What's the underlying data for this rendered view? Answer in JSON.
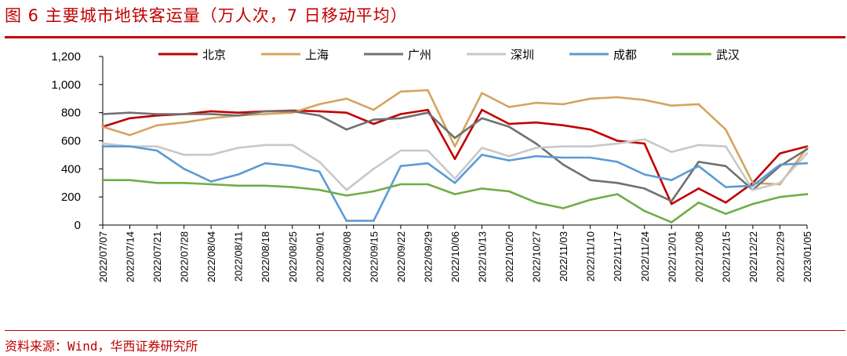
{
  "header": {
    "title": "图 6 主要城市地铁客运量（万人次，7 日移动平均）"
  },
  "footer": {
    "source": "资料来源：Wind，华西证券研究所"
  },
  "colors": {
    "brand": "#c00000",
    "axis": "#000000"
  },
  "chart_data": {
    "type": "line",
    "title": "图 6 主要城市地铁客运量（万人次，7 日移动平均）",
    "xlabel": "",
    "ylabel": "",
    "ylim": [
      0,
      1200
    ],
    "yticks": [
      0,
      200,
      400,
      600,
      800,
      1000,
      1200
    ],
    "ytick_labels": [
      "0",
      "200",
      "400",
      "600",
      "800",
      "1,000",
      "1,200"
    ],
    "grid": false,
    "legend_position": "top",
    "x": [
      "2022/07/07",
      "2022/07/14",
      "2022/07/21",
      "2022/07/28",
      "2022/08/04",
      "2022/08/11",
      "2022/08/18",
      "2022/08/25",
      "2022/09/01",
      "2022/09/08",
      "2022/09/15",
      "2022/09/22",
      "2022/09/29",
      "2022/10/06",
      "2022/10/13",
      "2022/10/20",
      "2022/10/27",
      "2022/11/03",
      "2022/11/10",
      "2022/11/17",
      "2022/11/24",
      "2022/12/01",
      "2022/12/08",
      "2022/12/15",
      "2022/12/22",
      "2022/12/29",
      "2023/01/05"
    ],
    "series": [
      {
        "name": "北京",
        "color": "#c00000",
        "values": [
          700,
          760,
          780,
          790,
          810,
          800,
          810,
          815,
          810,
          800,
          720,
          790,
          820,
          470,
          820,
          720,
          730,
          710,
          680,
          600,
          580,
          150,
          260,
          160,
          300,
          510,
          560
        ]
      },
      {
        "name": "上海",
        "color": "#d4a45f",
        "values": [
          700,
          640,
          710,
          730,
          760,
          780,
          790,
          800,
          860,
          900,
          820,
          950,
          960,
          560,
          940,
          840,
          870,
          860,
          900,
          910,
          890,
          850,
          860,
          680,
          300,
          290,
          550
        ]
      },
      {
        "name": "广州",
        "color": "#707070",
        "values": [
          790,
          800,
          790,
          790,
          790,
          780,
          810,
          810,
          780,
          680,
          750,
          760,
          800,
          620,
          760,
          700,
          580,
          430,
          320,
          300,
          260,
          170,
          450,
          420,
          250,
          420,
          540
        ]
      },
      {
        "name": "深圳",
        "color": "#c8c8c8",
        "values": [
          580,
          560,
          560,
          500,
          500,
          550,
          570,
          570,
          450,
          250,
          400,
          530,
          530,
          330,
          550,
          490,
          550,
          560,
          560,
          580,
          610,
          520,
          570,
          560,
          250,
          300,
          510
        ]
      },
      {
        "name": "成都",
        "color": "#5b9bd5",
        "values": [
          560,
          560,
          530,
          400,
          310,
          360,
          440,
          420,
          380,
          30,
          30,
          420,
          440,
          300,
          500,
          460,
          490,
          480,
          480,
          450,
          360,
          320,
          420,
          270,
          280,
          430,
          440
        ]
      },
      {
        "name": "武汉",
        "color": "#70ad47",
        "values": [
          320,
          320,
          300,
          300,
          290,
          280,
          280,
          270,
          250,
          210,
          240,
          290,
          290,
          220,
          260,
          240,
          160,
          120,
          180,
          220,
          100,
          20,
          160,
          80,
          150,
          200,
          220
        ]
      }
    ]
  }
}
